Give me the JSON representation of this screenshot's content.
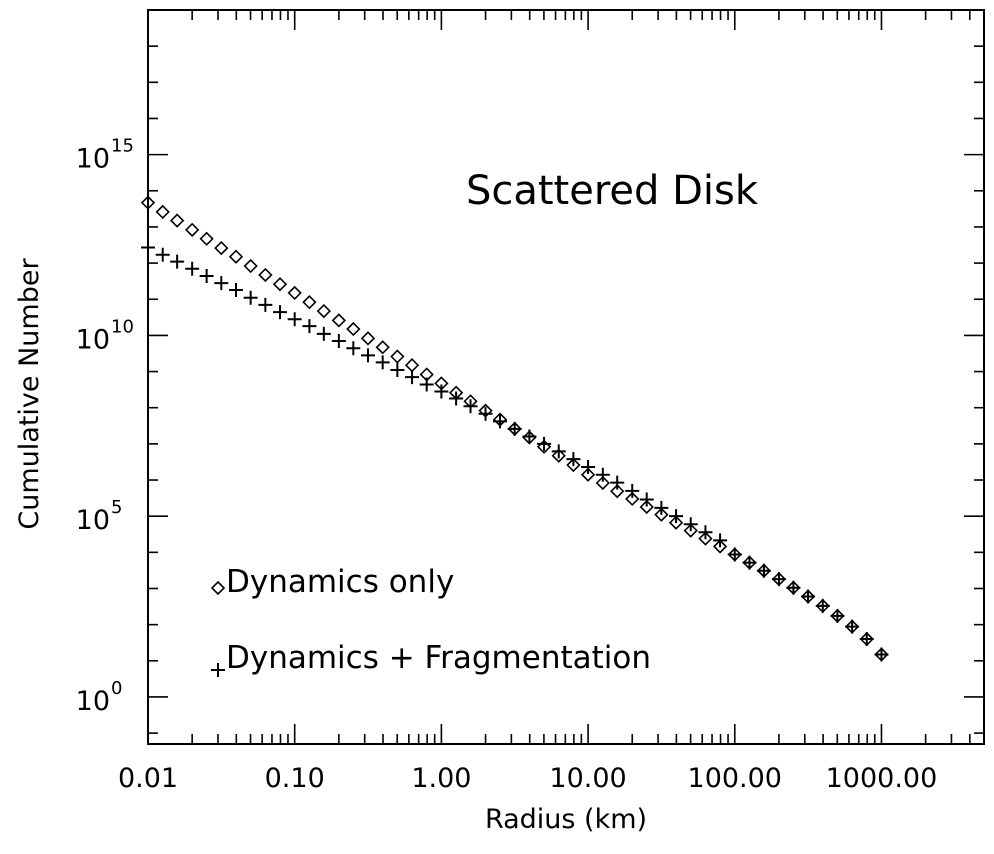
{
  "chart_data": {
    "type": "scatter",
    "title": "Scattered Disk",
    "xlabel": "Radius (km)",
    "ylabel": "Cumulative Number",
    "x_scale": "log",
    "y_scale": "log",
    "xlim": [
      0.01,
      5000
    ],
    "ylim": [
      0.05,
      1e+19
    ],
    "grid": false,
    "legend_position": "bottom-left",
    "x_ticks": [
      {
        "value": 0.01,
        "label": "0.01"
      },
      {
        "value": 0.1,
        "label": "0.10"
      },
      {
        "value": 1,
        "label": "1.00"
      },
      {
        "value": 10,
        "label": "10.00"
      },
      {
        "value": 100,
        "label": "100.00"
      },
      {
        "value": 1000,
        "label": "1000.00"
      }
    ],
    "y_ticks": [
      {
        "value": 1,
        "base": "10",
        "exp": "0"
      },
      {
        "value": 100000,
        "base": "10",
        "exp": "5"
      },
      {
        "value": 10000000000,
        "base": "10",
        "exp": "10"
      },
      {
        "value": 1000000000000000,
        "base": "10",
        "exp": "15"
      }
    ],
    "series": [
      {
        "name": "Dynamics only",
        "marker": "diamond",
        "points": [
          [
            0.01,
            47000000000000.0
          ],
          [
            0.0126,
            26000000000000.0
          ],
          [
            0.0158,
            15000000000000.0
          ],
          [
            0.02,
            8300000000000.0
          ],
          [
            0.0251,
            4700000000000.0
          ],
          [
            0.0316,
            2600000000000.0
          ],
          [
            0.0398,
            1500000000000.0
          ],
          [
            0.0501,
            830000000000.0
          ],
          [
            0.0631,
            470000000000.0
          ],
          [
            0.0794,
            260000000000.0
          ],
          [
            0.1,
            150000000000.0
          ],
          [
            0.126,
            83000000000.0
          ],
          [
            0.158,
            47000000000.0
          ],
          [
            0.2,
            26000000000.0
          ],
          [
            0.251,
            15000000000.0
          ],
          [
            0.316,
            8300000000.0
          ],
          [
            0.398,
            4700000000.0
          ],
          [
            0.501,
            2600000000.0
          ],
          [
            0.631,
            1500000000.0
          ],
          [
            0.794,
            830000000.0
          ],
          [
            1.0,
            470000000.0
          ],
          [
            1.26,
            260000000.0
          ],
          [
            1.58,
            150000000.0
          ],
          [
            2.0,
            83000000.0
          ],
          [
            2.51,
            47000000.0
          ],
          [
            3.16,
            26000000.0
          ],
          [
            3.98,
            15000000.0
          ],
          [
            5.01,
            8300000.0
          ],
          [
            6.31,
            4700000.0
          ],
          [
            7.94,
            2600000.0
          ],
          [
            10,
            1400000.0
          ],
          [
            12.6,
            830000.0
          ],
          [
            15.8,
            490000.0
          ],
          [
            20,
            300000.0
          ],
          [
            25.1,
            180000.0
          ],
          [
            31.6,
            110000.0
          ],
          [
            39.8,
            66000.0
          ],
          [
            50.1,
            40000.0
          ],
          [
            63.1,
            24000.0
          ],
          [
            79.4,
            14500.0
          ],
          [
            100,
            8700
          ],
          [
            126,
            5200
          ],
          [
            158,
            3100
          ],
          [
            200,
            1820
          ],
          [
            251,
            1050
          ],
          [
            316,
            600
          ],
          [
            398,
            330
          ],
          [
            501,
            175
          ],
          [
            631,
            88
          ],
          [
            794,
            40
          ],
          [
            1000,
            15
          ]
        ]
      },
      {
        "name": "Dynamics + Fragmentation",
        "marker": "plus",
        "points": [
          [
            0.01,
            2700000000000.0
          ],
          [
            0.0126,
            1700000000000.0
          ],
          [
            0.0158,
            1100000000000.0
          ],
          [
            0.02,
            700000000000.0
          ],
          [
            0.0251,
            440000000000.0
          ],
          [
            0.0316,
            280000000000.0
          ],
          [
            0.0398,
            180000000000.0
          ],
          [
            0.0501,
            110000000000.0
          ],
          [
            0.0631,
            70000000000.0
          ],
          [
            0.0794,
            44000000000.0
          ],
          [
            0.1,
            28000000000.0
          ],
          [
            0.126,
            18000000000.0
          ],
          [
            0.158,
            11000000000.0
          ],
          [
            0.2,
            7000000000.0
          ],
          [
            0.251,
            4400000000.0
          ],
          [
            0.316,
            2800000000.0
          ],
          [
            0.398,
            1800000000.0
          ],
          [
            0.501,
            1100000000.0
          ],
          [
            0.631,
            700000000.0
          ],
          [
            0.794,
            440000000.0
          ],
          [
            1.0,
            280000000.0
          ],
          [
            1.26,
            180000000.0
          ],
          [
            1.58,
            110000000.0
          ],
          [
            2.0,
            68000000.0
          ],
          [
            2.51,
            42000000.0
          ],
          [
            3.16,
            26000000.0
          ],
          [
            3.98,
            16000000.0
          ],
          [
            5.01,
            10000000.0
          ],
          [
            6.31,
            6200000.0
          ],
          [
            7.94,
            3800000.0
          ],
          [
            10,
            2300000.0
          ],
          [
            12.6,
            1400000.0
          ],
          [
            15.8,
            850000.0
          ],
          [
            20,
            500000.0
          ],
          [
            25.1,
            290000.0
          ],
          [
            31.6,
            170000.0
          ],
          [
            39.8,
            100000.0
          ],
          [
            50.1,
            60000.0
          ],
          [
            63.1,
            36000.0
          ],
          [
            79.4,
            21500.0
          ],
          [
            100,
            8700
          ],
          [
            126,
            5200
          ],
          [
            158,
            3100
          ],
          [
            200,
            1820
          ],
          [
            251,
            1050
          ],
          [
            316,
            600
          ],
          [
            398,
            330
          ],
          [
            501,
            175
          ],
          [
            631,
            88
          ],
          [
            794,
            40
          ],
          [
            1000,
            15
          ]
        ]
      }
    ]
  }
}
